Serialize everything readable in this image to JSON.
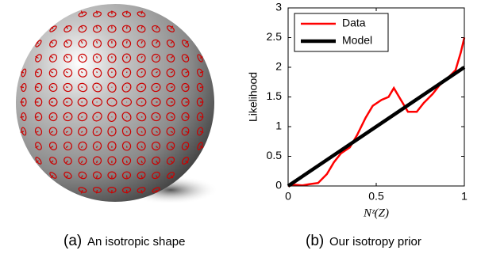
{
  "chart_data": {
    "type": "line",
    "xlabel": "Nᶻ(Z)",
    "ylabel": "Likelihood",
    "xlim": [
      0,
      1
    ],
    "ylim": [
      0,
      3
    ],
    "xticks": [
      0,
      0.5,
      1
    ],
    "yticks": [
      0,
      0.5,
      1,
      1.5,
      2,
      2.5,
      3
    ],
    "legend": "upper left",
    "series": [
      {
        "name": "Data",
        "color": "#ff0000",
        "x": [
          0,
          0.04,
          0.08,
          0.12,
          0.17,
          0.22,
          0.26,
          0.3,
          0.35,
          0.39,
          0.44,
          0.48,
          0.53,
          0.57,
          0.6,
          0.64,
          0.68,
          0.73,
          0.77,
          0.82,
          0.86,
          0.9,
          0.95,
          0.98,
          1.0
        ],
        "values": [
          0,
          0.02,
          0.01,
          0.03,
          0.05,
          0.2,
          0.4,
          0.55,
          0.65,
          0.85,
          1.15,
          1.35,
          1.45,
          1.5,
          1.65,
          1.45,
          1.25,
          1.25,
          1.4,
          1.55,
          1.7,
          1.8,
          1.95,
          2.25,
          2.5
        ]
      },
      {
        "name": "Model",
        "color": "#000000",
        "x": [
          0,
          1
        ],
        "values": [
          0,
          2
        ]
      }
    ]
  },
  "captions": [
    {
      "label": "(a)",
      "text": "An isotropic shape"
    },
    {
      "label": "(b)",
      "text": "Our isotropy prior"
    }
  ]
}
